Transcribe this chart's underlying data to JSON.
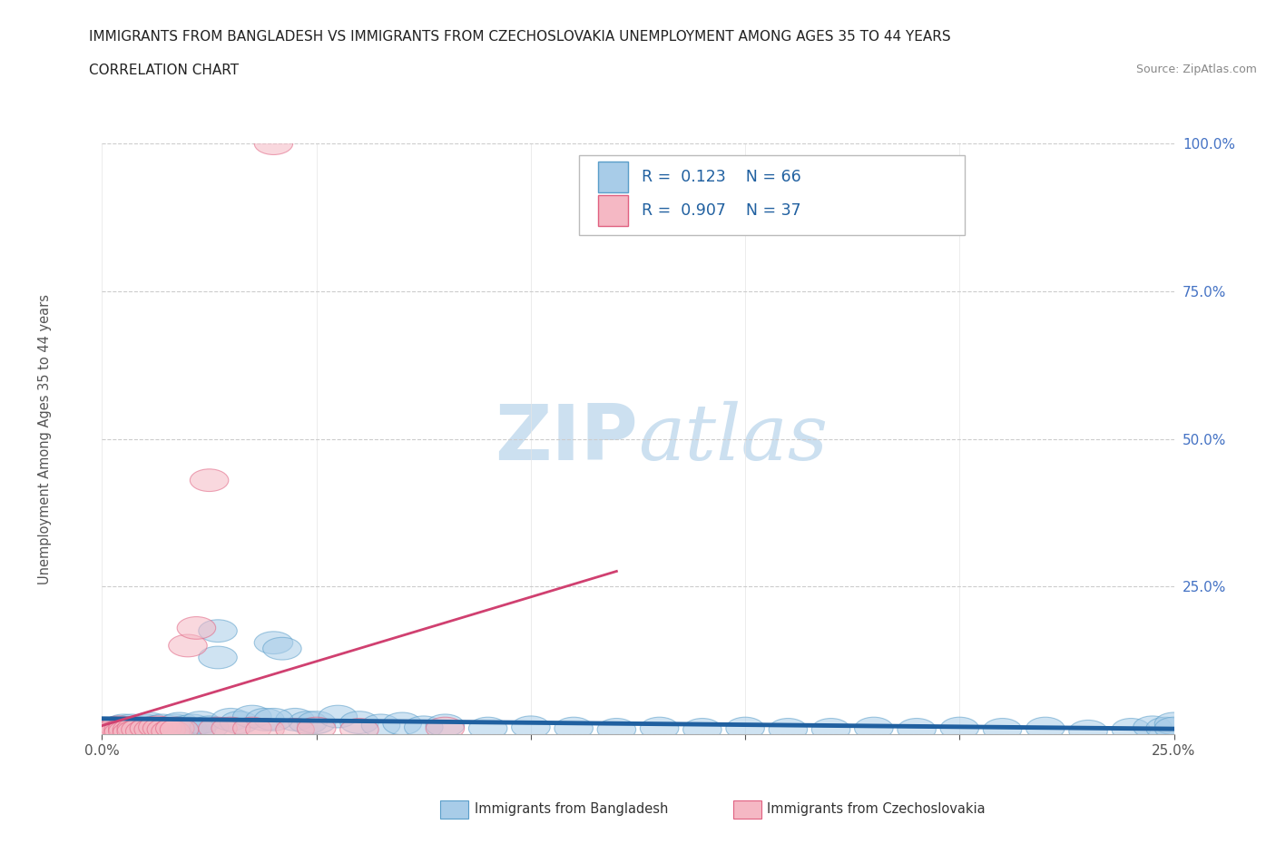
{
  "title_line1": "IMMIGRANTS FROM BANGLADESH VS IMMIGRANTS FROM CZECHOSLOVAKIA UNEMPLOYMENT AMONG AGES 35 TO 44 YEARS",
  "title_line2": "CORRELATION CHART",
  "source_text": "Source: ZipAtlas.com",
  "ylabel": "Unemployment Among Ages 35 to 44 years",
  "xlim": [
    0,
    0.25
  ],
  "ylim": [
    0,
    1.0
  ],
  "xtick_labels": [
    "0.0%",
    "",
    "",
    "",
    "",
    "25.0%"
  ],
  "ytick_labels": [
    "",
    "25.0%",
    "50.0%",
    "75.0%",
    "100.0%"
  ],
  "bangladesh_color": "#a8cce8",
  "bangladesh_edge": "#5a9ec9",
  "czechoslovakia_color": "#f5b8c4",
  "czechoslovakia_edge": "#e06080",
  "trend_bangladesh_color": "#2060a0",
  "trend_czechoslovakia_color": "#d04070",
  "watermark_color": "#cce0f0",
  "bangladesh_x": [
    0.001,
    0.002,
    0.003,
    0.003,
    0.004,
    0.005,
    0.005,
    0.006,
    0.007,
    0.007,
    0.008,
    0.009,
    0.01,
    0.01,
    0.011,
    0.012,
    0.013,
    0.014,
    0.015,
    0.016,
    0.017,
    0.018,
    0.019,
    0.02,
    0.021,
    0.022,
    0.023,
    0.025,
    0.027,
    0.03,
    0.032,
    0.035,
    0.038,
    0.04,
    0.042,
    0.045,
    0.048,
    0.05,
    0.055,
    0.06,
    0.065,
    0.07,
    0.075,
    0.08,
    0.09,
    0.1,
    0.11,
    0.12,
    0.13,
    0.14,
    0.15,
    0.16,
    0.17,
    0.18,
    0.19,
    0.2,
    0.21,
    0.22,
    0.23,
    0.24,
    0.245,
    0.248,
    0.25,
    0.25,
    0.027,
    0.04
  ],
  "bangladesh_y": [
    0.005,
    0.008,
    0.01,
    0.003,
    0.012,
    0.007,
    0.015,
    0.01,
    0.008,
    0.015,
    0.012,
    0.01,
    0.015,
    0.005,
    0.018,
    0.012,
    0.01,
    0.015,
    0.01,
    0.012,
    0.015,
    0.018,
    0.012,
    0.01,
    0.015,
    0.008,
    0.02,
    0.012,
    0.175,
    0.025,
    0.02,
    0.03,
    0.025,
    0.155,
    0.145,
    0.025,
    0.02,
    0.02,
    0.03,
    0.02,
    0.015,
    0.018,
    0.012,
    0.015,
    0.01,
    0.012,
    0.01,
    0.008,
    0.01,
    0.008,
    0.01,
    0.008,
    0.008,
    0.01,
    0.008,
    0.01,
    0.008,
    0.01,
    0.005,
    0.008,
    0.012,
    0.01,
    0.018,
    0.01,
    0.13,
    0.025
  ],
  "czechoslovakia_x": [
    0.001,
    0.002,
    0.002,
    0.003,
    0.003,
    0.004,
    0.004,
    0.005,
    0.005,
    0.006,
    0.006,
    0.007,
    0.007,
    0.008,
    0.008,
    0.009,
    0.01,
    0.011,
    0.012,
    0.013,
    0.014,
    0.015,
    0.016,
    0.017,
    0.018,
    0.02,
    0.022,
    0.025,
    0.027,
    0.03,
    0.035,
    0.038,
    0.04,
    0.045,
    0.05,
    0.06,
    0.08
  ],
  "czechoslovakia_y": [
    0.005,
    0.008,
    0.003,
    0.01,
    0.003,
    0.012,
    0.005,
    0.008,
    0.003,
    0.01,
    0.005,
    0.008,
    0.003,
    0.01,
    0.005,
    0.008,
    0.005,
    0.01,
    0.008,
    0.012,
    0.01,
    0.008,
    0.005,
    0.01,
    0.008,
    0.15,
    0.18,
    0.43,
    0.01,
    0.01,
    0.01,
    0.008,
    1.0,
    0.008,
    0.01,
    0.008,
    0.01
  ],
  "trend_bangladesh_start_x": 0.0,
  "trend_bangladesh_end_x": 0.25,
  "trend_czechoslovakia_start_x": -0.002,
  "trend_czechoslovakia_end_x": 0.12
}
